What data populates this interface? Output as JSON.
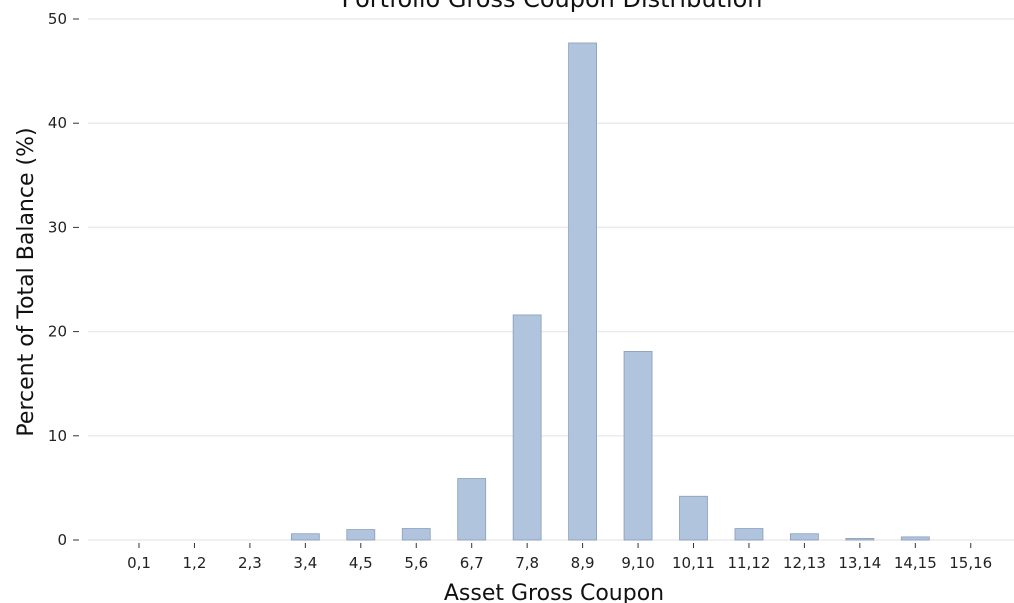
{
  "chart_data": {
    "type": "bar",
    "title": "Portfolio Gross Coupon Distribution",
    "xlabel": "Asset Gross Coupon",
    "ylabel": "Percent of Total Balance (%)",
    "categories": [
      "0,1",
      "1,2",
      "2,3",
      "3,4",
      "4,5",
      "5,6",
      "6,7",
      "7,8",
      "8,9",
      "9,10",
      "10,11",
      "11,12",
      "12,13",
      "13,14",
      "14,15",
      "15,16"
    ],
    "values": [
      0,
      0,
      0,
      0.6,
      1.0,
      1.1,
      5.9,
      21.6,
      47.7,
      18.1,
      4.2,
      1.1,
      0.6,
      0.15,
      0.3,
      0
    ],
    "ylim": [
      0,
      50
    ],
    "yticks": [
      0,
      10,
      20,
      30,
      40,
      50
    ],
    "grid": true,
    "colors": {
      "bar_fill": "#b0c4de",
      "bar_stroke": "#8a9db8",
      "grid": "#ebebeb"
    }
  }
}
